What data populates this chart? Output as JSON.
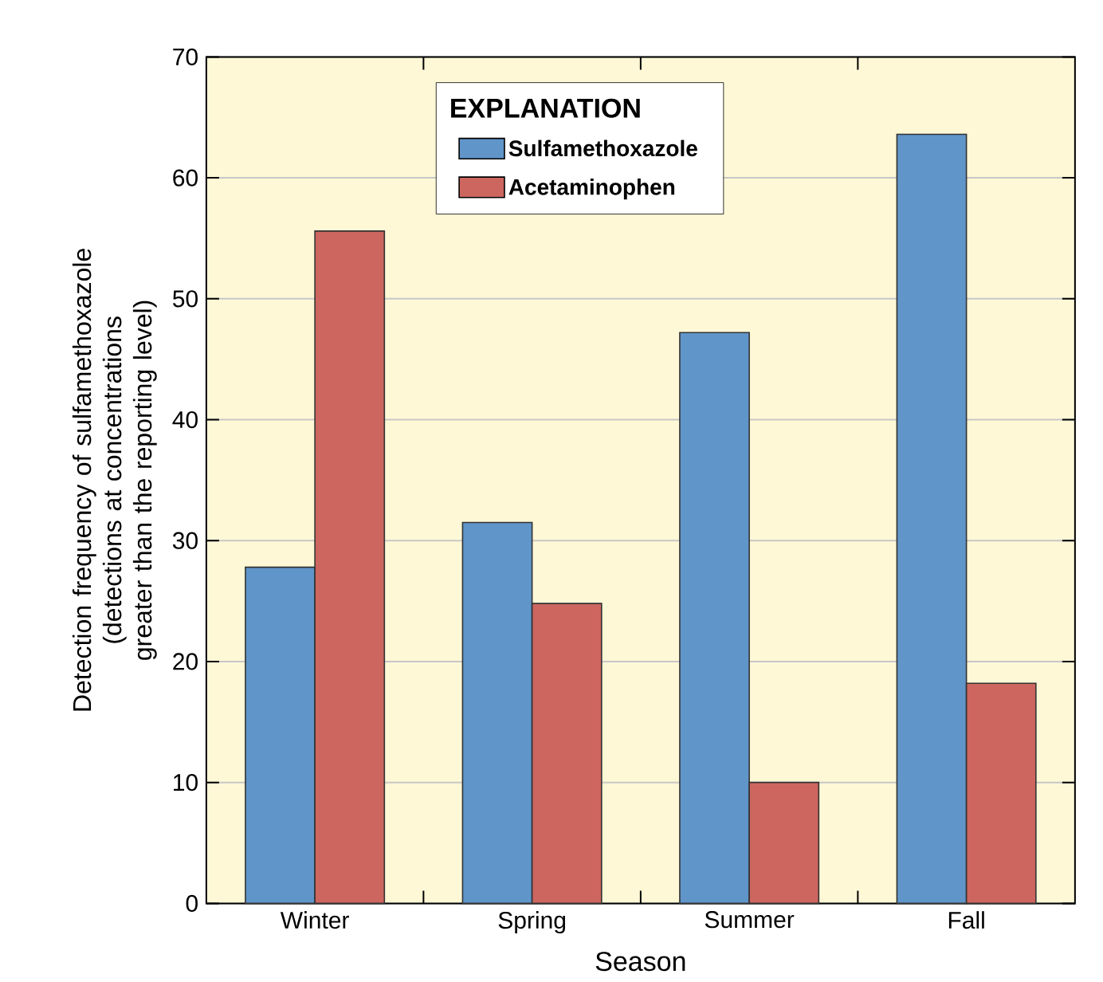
{
  "chart_data": {
    "type": "bar",
    "xlabel": "Season",
    "ylabel": "Detection frequency of sulfamethoxazole (detections at concentrations greater than the reporting level)",
    "legend_title": "EXPLANATION",
    "categories": [
      "Winter",
      "Spring",
      "Summer",
      "Fall"
    ],
    "series": [
      {
        "name": "Sulfamethoxazole",
        "color": "#6095c9",
        "values": [
          27.8,
          31.5,
          47.2,
          63.6
        ]
      },
      {
        "name": "Acetaminophen",
        "color": "#cd665f",
        "values": [
          55.6,
          24.8,
          10.0,
          18.2
        ]
      }
    ],
    "ylim": [
      0,
      70
    ],
    "yticks": [
      0,
      10,
      20,
      30,
      40,
      50,
      60,
      70
    ],
    "grid": "y",
    "legend": "top"
  }
}
